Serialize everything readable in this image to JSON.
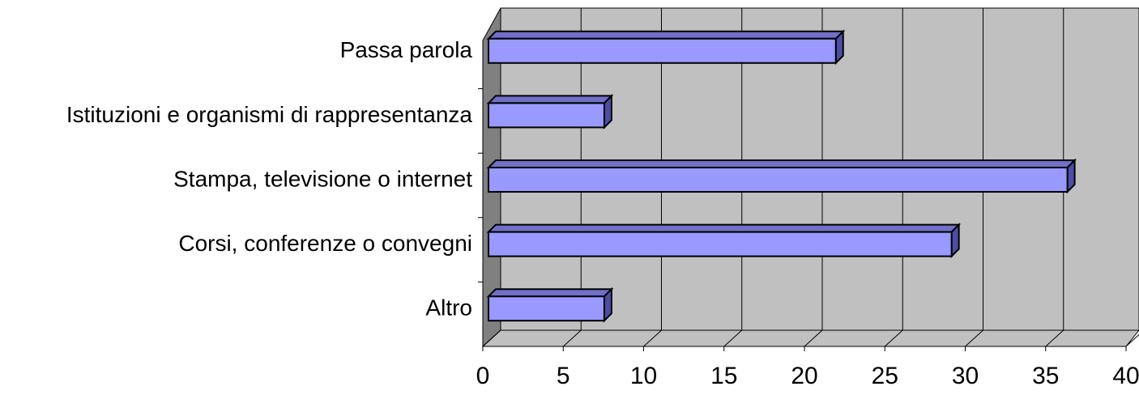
{
  "chart_data": {
    "type": "bar",
    "orientation": "horizontal",
    "categories": [
      "Passa parola",
      "Istituzioni e organismi di rappresentanza",
      "Stampa, televisione o internet",
      "Corsi, conferenze o convegni",
      "Altro"
    ],
    "values": [
      21.6,
      7.2,
      36,
      28.8,
      7.2
    ],
    "color": "#9999ff",
    "xlim": [
      0,
      40
    ],
    "xticks": [
      0,
      5,
      10,
      15,
      20,
      25,
      30,
      35,
      40
    ],
    "grid": true
  }
}
